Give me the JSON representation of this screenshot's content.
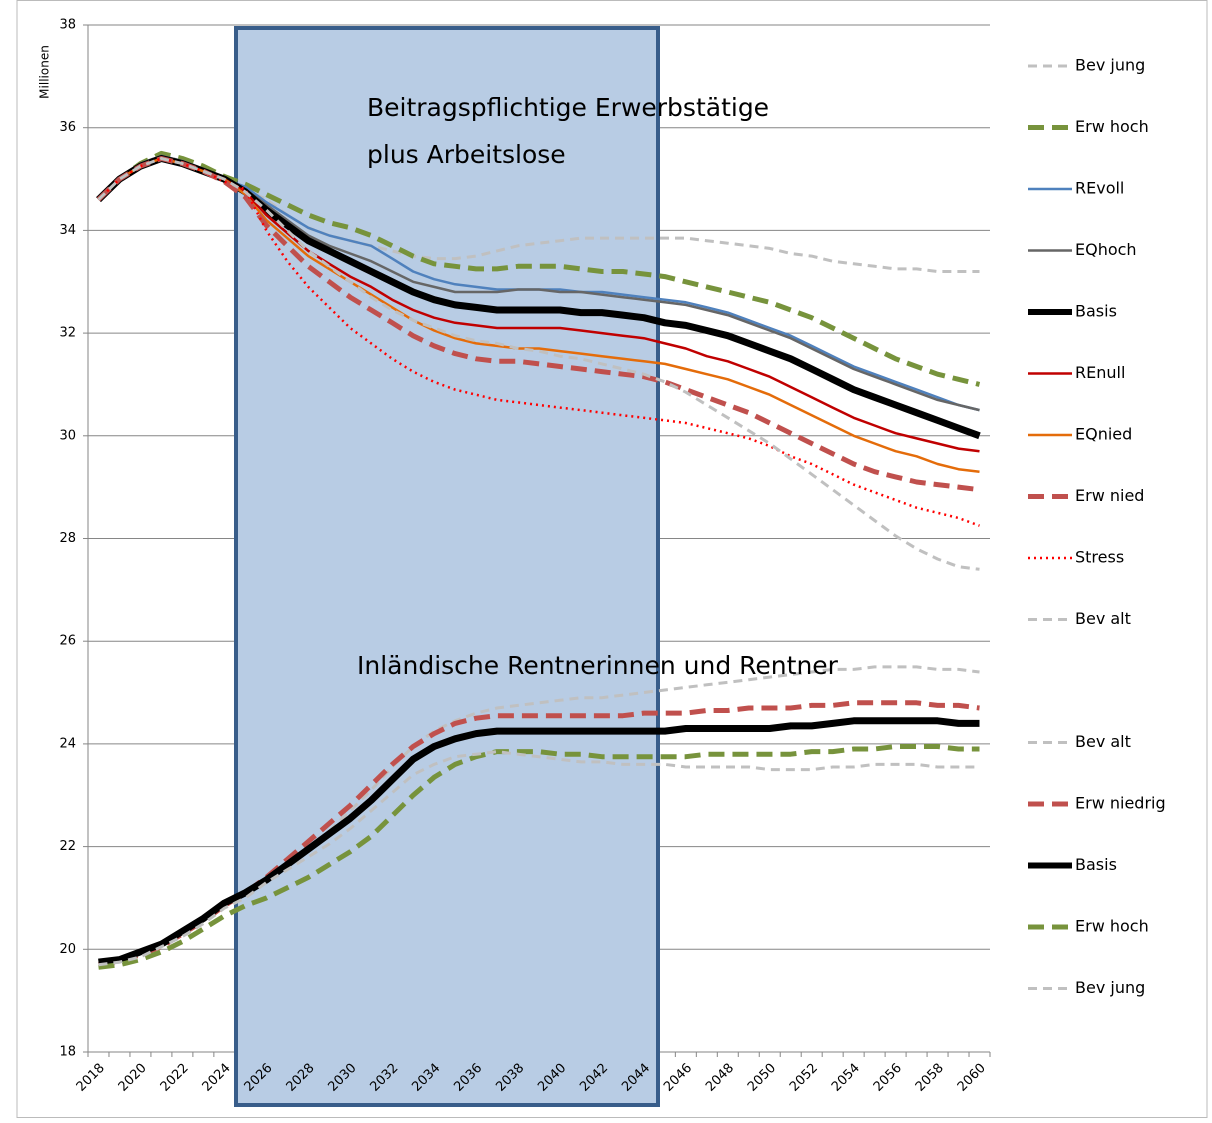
{
  "chart_data": {
    "type": "line",
    "y_label": "Millionen",
    "annotations": [
      "Beitragspflichtige Erwerbstätige",
      "plus Arbeitslose",
      "Inländische Rentnerinnen und Rentner"
    ],
    "categories": [
      2018,
      null,
      2020,
      null,
      2022,
      null,
      2024,
      null,
      2026,
      null,
      2028,
      null,
      2030,
      null,
      2032,
      null,
      2034,
      null,
      2036,
      null,
      2038,
      null,
      2040,
      null,
      2042,
      null,
      2044,
      null,
      2046,
      null,
      2048,
      null,
      2050,
      null,
      2052,
      null,
      2054,
      null,
      2056,
      null,
      2058,
      null,
      2060
    ],
    "ylim": [
      18,
      38
    ],
    "yticks": [
      18,
      20,
      22,
      24,
      26,
      28,
      30,
      32,
      34,
      36,
      38
    ],
    "grid": true,
    "series": [
      {
        "name": "Bev jung",
        "color": "#c0c0c0",
        "line_style": "dashed",
        "values": [
          34.6,
          35.0,
          35.3,
          35.45,
          35.35,
          35.2,
          35.0,
          34.8,
          34.6,
          34.3,
          34.05,
          33.9,
          33.8,
          33.7,
          33.6,
          33.5,
          33.45,
          33.45,
          33.5,
          33.6,
          33.7,
          33.75,
          33.8,
          33.85,
          33.85,
          33.85,
          33.85,
          33.85,
          33.85,
          33.8,
          33.75,
          33.7,
          33.65,
          33.55,
          33.5,
          33.4,
          33.35,
          33.3,
          33.25,
          33.25,
          33.2,
          33.2,
          33.2
        ]
      },
      {
        "name": "Erw hoch",
        "color": "#77933c",
        "line_style": "thick-dashed",
        "values": [
          34.6,
          35.0,
          35.3,
          35.5,
          35.4,
          35.25,
          35.05,
          34.9,
          34.7,
          34.5,
          34.3,
          34.15,
          34.05,
          33.9,
          33.7,
          33.5,
          33.35,
          33.3,
          33.25,
          33.25,
          33.3,
          33.3,
          33.3,
          33.25,
          33.2,
          33.2,
          33.15,
          33.1,
          33.0,
          32.9,
          32.8,
          32.7,
          32.6,
          32.45,
          32.3,
          32.1,
          31.9,
          31.7,
          31.5,
          31.35,
          31.2,
          31.1,
          31.0
        ]
      },
      {
        "name": "REvoll",
        "color": "#4f81bd",
        "line_style": "solid",
        "values": [
          34.6,
          35.0,
          35.3,
          35.45,
          35.35,
          35.2,
          35.0,
          34.85,
          34.55,
          34.3,
          34.05,
          33.9,
          33.8,
          33.7,
          33.45,
          33.2,
          33.05,
          32.95,
          32.9,
          32.85,
          32.85,
          32.85,
          32.85,
          32.8,
          32.8,
          32.75,
          32.7,
          32.65,
          32.6,
          32.5,
          32.4,
          32.25,
          32.1,
          31.95,
          31.75,
          31.55,
          31.35,
          31.2,
          31.05,
          30.9,
          30.75,
          30.6,
          30.5
        ]
      },
      {
        "name": "EQhoch",
        "color": "#666666",
        "line_style": "solid",
        "values": [
          34.6,
          35.0,
          35.3,
          35.45,
          35.35,
          35.2,
          35.0,
          34.8,
          34.5,
          34.2,
          33.9,
          33.7,
          33.55,
          33.4,
          33.2,
          33.0,
          32.9,
          32.8,
          32.8,
          32.8,
          32.85,
          32.85,
          32.8,
          32.8,
          32.75,
          32.7,
          32.65,
          32.6,
          32.55,
          32.45,
          32.35,
          32.2,
          32.05,
          31.9,
          31.7,
          31.5,
          31.3,
          31.15,
          31.0,
          30.85,
          30.7,
          30.6,
          30.5
        ]
      },
      {
        "name": "Basis",
        "color": "#000000",
        "line_style": "thick",
        "values": [
          34.6,
          35.0,
          35.25,
          35.4,
          35.3,
          35.15,
          35.0,
          34.75,
          34.4,
          34.1,
          33.8,
          33.6,
          33.4,
          33.2,
          33.0,
          32.8,
          32.65,
          32.55,
          32.5,
          32.45,
          32.45,
          32.45,
          32.45,
          32.4,
          32.4,
          32.35,
          32.3,
          32.2,
          32.15,
          32.05,
          31.95,
          31.8,
          31.65,
          31.5,
          31.3,
          31.1,
          30.9,
          30.75,
          30.6,
          30.45,
          30.3,
          30.15,
          30.0
        ]
      },
      {
        "name": "REnull",
        "color": "#c00000",
        "line_style": "solid",
        "values": [
          34.6,
          35.0,
          35.25,
          35.4,
          35.3,
          35.15,
          35.0,
          34.75,
          34.3,
          33.95,
          33.6,
          33.35,
          33.1,
          32.9,
          32.65,
          32.45,
          32.3,
          32.2,
          32.15,
          32.1,
          32.1,
          32.1,
          32.1,
          32.05,
          32.0,
          31.95,
          31.9,
          31.8,
          31.7,
          31.55,
          31.45,
          31.3,
          31.15,
          30.95,
          30.75,
          30.55,
          30.35,
          30.2,
          30.05,
          29.95,
          29.85,
          29.75,
          29.7
        ]
      },
      {
        "name": "EQnied",
        "color": "#e46c0a",
        "line_style": "solid",
        "values": [
          34.6,
          35.0,
          35.25,
          35.4,
          35.3,
          35.15,
          35.0,
          34.7,
          34.2,
          33.85,
          33.5,
          33.25,
          33.0,
          32.75,
          32.5,
          32.25,
          32.05,
          31.9,
          31.8,
          31.75,
          31.7,
          31.7,
          31.65,
          31.6,
          31.55,
          31.5,
          31.45,
          31.4,
          31.3,
          31.2,
          31.1,
          30.95,
          30.8,
          30.6,
          30.4,
          30.2,
          30.0,
          29.85,
          29.7,
          29.6,
          29.45,
          29.35,
          29.3
        ]
      },
      {
        "name": "Erw nied",
        "color": "#c0504d",
        "line_style": "thick-dashed",
        "values": [
          34.6,
          35.0,
          35.25,
          35.4,
          35.3,
          35.15,
          34.95,
          34.65,
          34.1,
          33.7,
          33.3,
          33.0,
          32.7,
          32.45,
          32.2,
          31.95,
          31.75,
          31.6,
          31.5,
          31.45,
          31.45,
          31.4,
          31.35,
          31.3,
          31.25,
          31.2,
          31.15,
          31.05,
          30.9,
          30.75,
          30.6,
          30.45,
          30.25,
          30.05,
          29.85,
          29.65,
          29.45,
          29.3,
          29.2,
          29.1,
          29.05,
          29.0,
          28.95
        ]
      },
      {
        "name": "Stress",
        "color": "#ff0000",
        "line_style": "dotted",
        "values": [
          34.6,
          35.0,
          35.25,
          35.4,
          35.3,
          35.15,
          34.95,
          34.8,
          34.0,
          33.4,
          32.9,
          32.5,
          32.1,
          31.8,
          31.5,
          31.25,
          31.05,
          30.9,
          30.8,
          30.7,
          30.65,
          30.6,
          30.55,
          30.5,
          30.45,
          30.4,
          30.35,
          30.3,
          30.25,
          30.15,
          30.05,
          29.95,
          29.8,
          29.6,
          29.45,
          29.25,
          29.05,
          28.9,
          28.75,
          28.6,
          28.5,
          28.4,
          28.25
        ]
      },
      {
        "name": "Bev alt",
        "color": "#c0c0c0",
        "line_style": "dashed",
        "values": [
          34.6,
          35.0,
          35.25,
          35.4,
          35.3,
          35.15,
          35.0,
          34.75,
          34.4,
          34.0,
          33.6,
          33.3,
          33.0,
          32.7,
          32.45,
          32.25,
          32.1,
          31.95,
          31.85,
          31.8,
          31.7,
          31.65,
          31.55,
          31.5,
          31.4,
          31.3,
          31.2,
          31.05,
          30.85,
          30.6,
          30.35,
          30.1,
          29.85,
          29.55,
          29.25,
          28.95,
          28.65,
          28.35,
          28.05,
          27.8,
          27.6,
          27.45,
          27.4
        ]
      },
      {
        "name": "Bev alt",
        "color": "#c0c0c0",
        "line_style": "dashed",
        "values": [
          19.7,
          19.75,
          19.9,
          20.1,
          20.35,
          20.6,
          20.85,
          21.1,
          21.35,
          21.65,
          21.95,
          22.3,
          22.7,
          23.1,
          23.55,
          23.95,
          24.25,
          24.45,
          24.6,
          24.7,
          24.75,
          24.8,
          24.85,
          24.9,
          24.9,
          24.95,
          25.0,
          25.05,
          25.1,
          25.15,
          25.2,
          25.25,
          25.3,
          25.35,
          25.4,
          25.45,
          25.45,
          25.5,
          25.5,
          25.5,
          25.45,
          25.45,
          25.4
        ]
      },
      {
        "name": "Erw niedrig",
        "color": "#c0504d",
        "line_style": "thick-dashed",
        "values": [
          19.7,
          19.75,
          19.9,
          20.05,
          20.3,
          20.55,
          20.85,
          21.1,
          21.4,
          21.75,
          22.1,
          22.45,
          22.8,
          23.2,
          23.6,
          23.95,
          24.2,
          24.4,
          24.5,
          24.55,
          24.55,
          24.55,
          24.55,
          24.55,
          24.55,
          24.55,
          24.6,
          24.6,
          24.6,
          24.65,
          24.65,
          24.7,
          24.7,
          24.7,
          24.75,
          24.75,
          24.8,
          24.8,
          24.8,
          24.8,
          24.75,
          24.75,
          24.7
        ]
      },
      {
        "name": "Basis",
        "color": "#000000",
        "line_style": "thick",
        "values": [
          19.75,
          19.8,
          19.95,
          20.1,
          20.35,
          20.6,
          20.9,
          21.1,
          21.35,
          21.65,
          21.95,
          22.25,
          22.55,
          22.9,
          23.3,
          23.7,
          23.95,
          24.1,
          24.2,
          24.25,
          24.25,
          24.25,
          24.25,
          24.25,
          24.25,
          24.25,
          24.25,
          24.25,
          24.3,
          24.3,
          24.3,
          24.3,
          24.3,
          24.35,
          24.35,
          24.4,
          24.45,
          24.45,
          24.45,
          24.45,
          24.45,
          24.4,
          24.4
        ]
      },
      {
        "name": "Erw hoch",
        "color": "#77933c",
        "line_style": "thick-dashed",
        "values": [
          19.65,
          19.7,
          19.8,
          19.95,
          20.15,
          20.4,
          20.65,
          20.85,
          21.0,
          21.2,
          21.4,
          21.65,
          21.9,
          22.2,
          22.6,
          23.0,
          23.35,
          23.6,
          23.75,
          23.85,
          23.85,
          23.85,
          23.8,
          23.8,
          23.75,
          23.75,
          23.75,
          23.75,
          23.75,
          23.8,
          23.8,
          23.8,
          23.8,
          23.8,
          23.85,
          23.85,
          23.9,
          23.9,
          23.95,
          23.95,
          23.95,
          23.9,
          23.9
        ]
      },
      {
        "name": "Bev jung",
        "color": "#c0c0c0",
        "line_style": "dashed",
        "values": [
          19.7,
          19.75,
          19.85,
          20.05,
          20.25,
          20.5,
          20.8,
          21.0,
          21.3,
          21.55,
          21.8,
          22.05,
          22.35,
          22.7,
          23.05,
          23.4,
          23.6,
          23.75,
          23.8,
          23.85,
          23.8,
          23.75,
          23.7,
          23.65,
          23.65,
          23.6,
          23.6,
          23.6,
          23.55,
          23.55,
          23.55,
          23.55,
          23.5,
          23.5,
          23.5,
          23.55,
          23.55,
          23.6,
          23.6,
          23.6,
          23.55,
          23.55,
          23.55
        ]
      }
    ]
  }
}
